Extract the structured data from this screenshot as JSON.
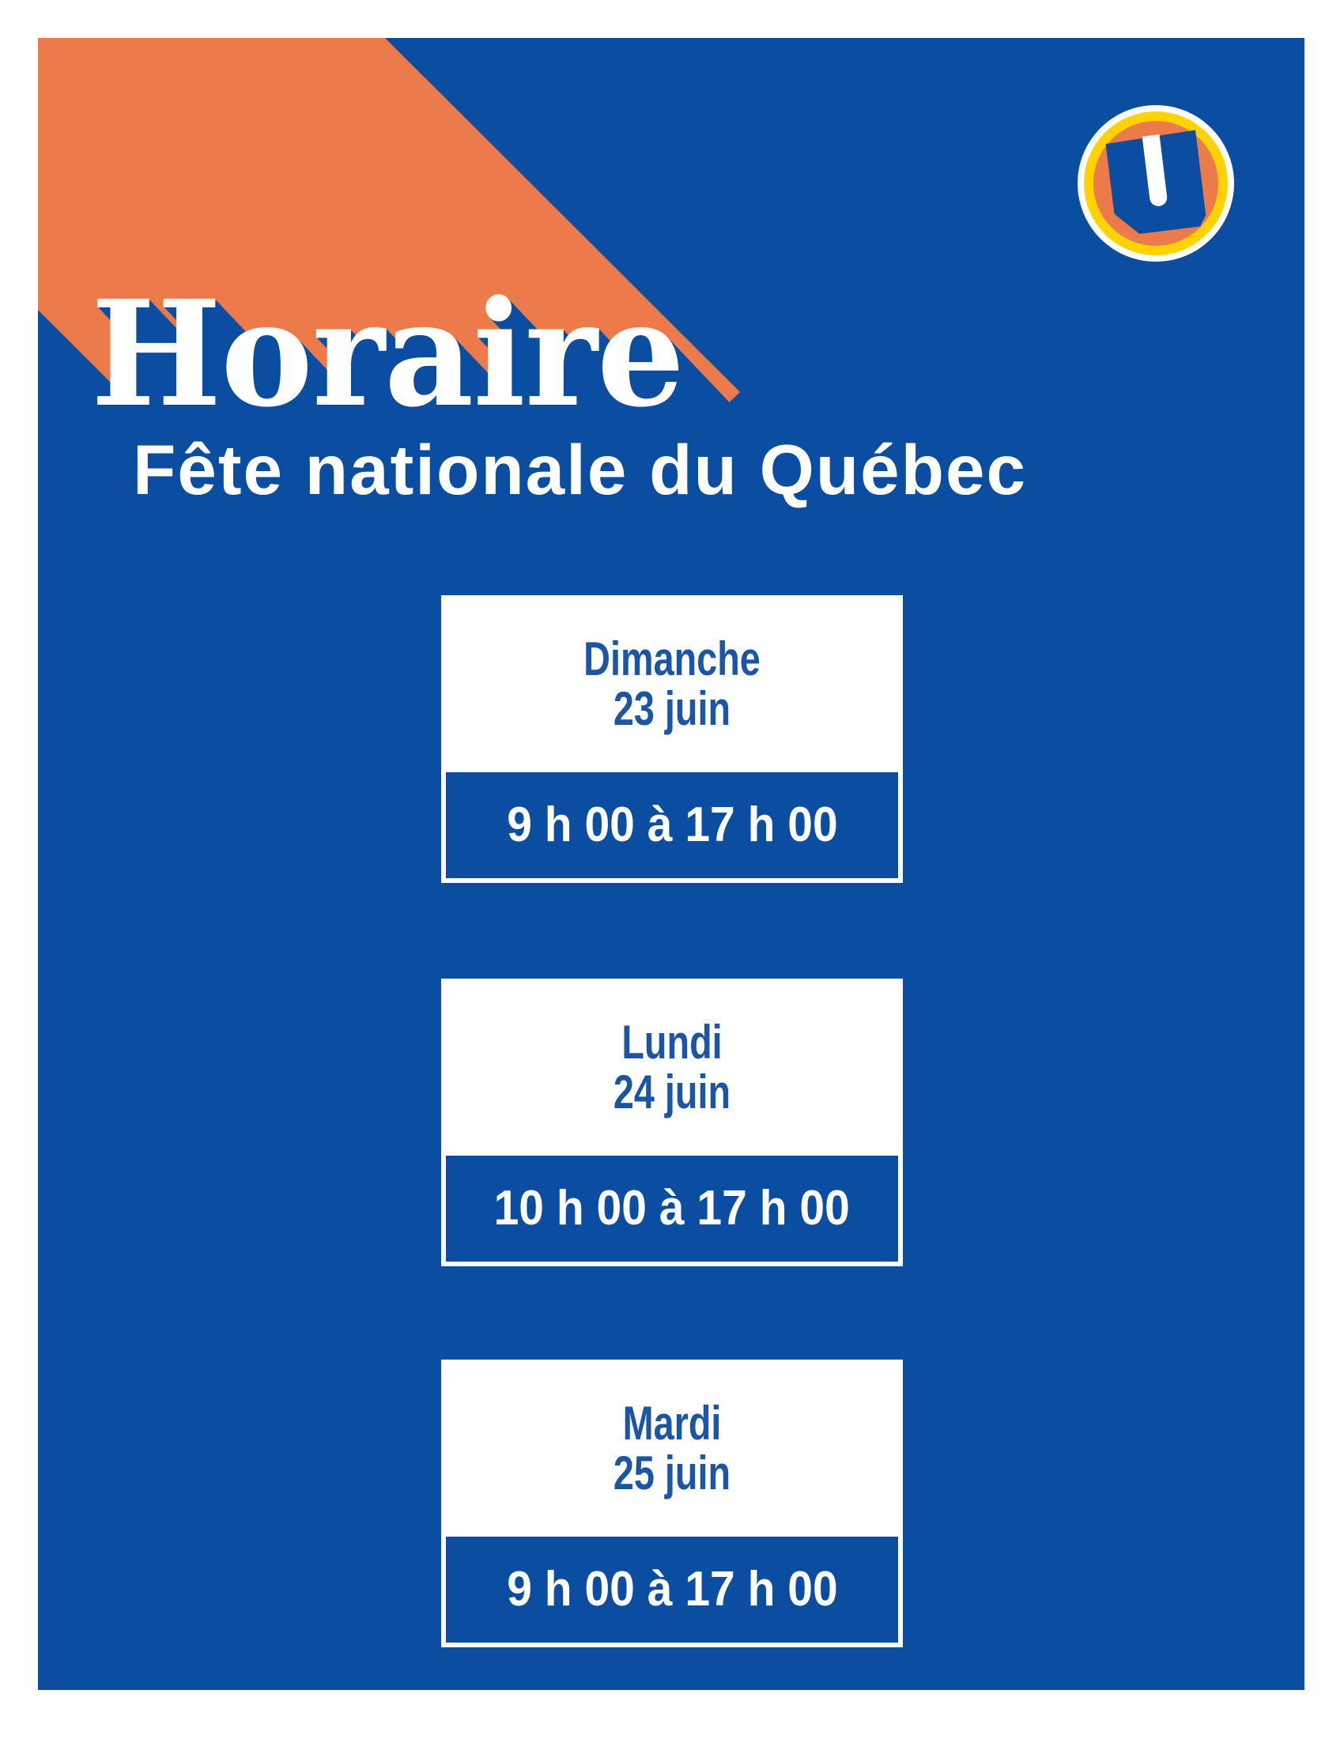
{
  "title": "Horaire",
  "subtitle": "Fête nationale du Québec",
  "logo": {
    "letter": "U"
  },
  "schedule": [
    {
      "day": "Dimanche",
      "date": "23 juin",
      "hours": "9 h 00 à 17 h 00"
    },
    {
      "day": "Lundi",
      "date": "24 juin",
      "hours": "10 h 00 à 17 h 00"
    },
    {
      "day": "Mardi",
      "date": "25 juin",
      "hours": "9 h 00 à 17 h 00"
    }
  ],
  "colors": {
    "blue": "#0B4DA1",
    "orange": "#EC7A4B",
    "yellow": "#FFD200",
    "day-text": "#1B55A6"
  }
}
